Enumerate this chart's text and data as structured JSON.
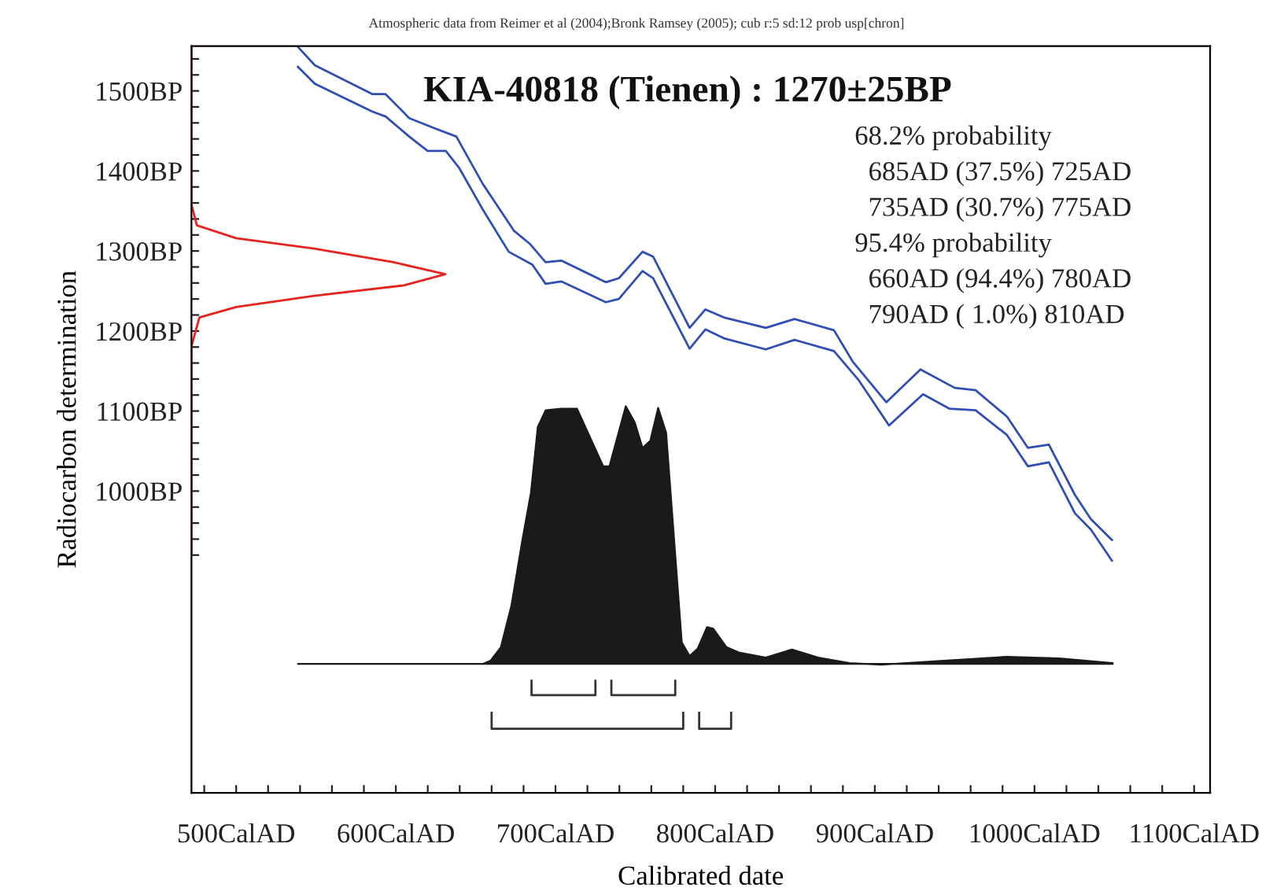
{
  "chart_data": {
    "type": "line",
    "title": "KIA-40818 (Tienen) : 1270±25BP",
    "xlabel": "Calibrated date",
    "ylabel": "Radiocarbon determination",
    "annotations": [
      "Atmospheric data from Reimer et al (2004);Bronk Ramsey (2005); cub r:5 sd:12 prob usp[chron]",
      "68.2% probability",
      "  685AD (37.5%) 725AD",
      "  735AD (30.7%) 775AD",
      "95.4% probability",
      "  660AD (94.4%) 780AD",
      "  790AD ( 1.0%) 810AD"
    ],
    "xlim": [
      472,
      1110
    ],
    "ylim": [
      623,
      1556
    ],
    "xticks": [
      {
        "value": 480,
        "label": null
      },
      {
        "value": 500,
        "label": "500CalAD"
      },
      {
        "value": 520,
        "label": null
      },
      {
        "value": 540,
        "label": null
      },
      {
        "value": 560,
        "label": null
      },
      {
        "value": 580,
        "label": null
      },
      {
        "value": 600,
        "label": "600CalAD"
      },
      {
        "value": 620,
        "label": null
      },
      {
        "value": 640,
        "label": null
      },
      {
        "value": 660,
        "label": null
      },
      {
        "value": 680,
        "label": null
      },
      {
        "value": 700,
        "label": "700CalAD"
      },
      {
        "value": 720,
        "label": null
      },
      {
        "value": 740,
        "label": null
      },
      {
        "value": 760,
        "label": null
      },
      {
        "value": 780,
        "label": null
      },
      {
        "value": 800,
        "label": "800CalAD"
      },
      {
        "value": 820,
        "label": null
      },
      {
        "value": 840,
        "label": null
      },
      {
        "value": 860,
        "label": null
      },
      {
        "value": 880,
        "label": null
      },
      {
        "value": 900,
        "label": "900CalAD"
      },
      {
        "value": 920,
        "label": null
      },
      {
        "value": 940,
        "label": null
      },
      {
        "value": 960,
        "label": null
      },
      {
        "value": 980,
        "label": null
      },
      {
        "value": 1000,
        "label": "1000CalAD"
      },
      {
        "value": 1020,
        "label": null
      },
      {
        "value": 1040,
        "label": null
      },
      {
        "value": 1060,
        "label": null
      },
      {
        "value": 1080,
        "label": null
      },
      {
        "value": 1100,
        "label": "1100CalAD"
      }
    ],
    "yticks": [
      {
        "value": 920,
        "label": null
      },
      {
        "value": 940,
        "label": null
      },
      {
        "value": 960,
        "label": null
      },
      {
        "value": 980,
        "label": null
      },
      {
        "value": 1000,
        "label": "1000BP"
      },
      {
        "value": 1020,
        "label": null
      },
      {
        "value": 1040,
        "label": null
      },
      {
        "value": 1060,
        "label": null
      },
      {
        "value": 1080,
        "label": null
      },
      {
        "value": 1100,
        "label": "1100BP"
      },
      {
        "value": 1120,
        "label": null
      },
      {
        "value": 1140,
        "label": null
      },
      {
        "value": 1160,
        "label": null
      },
      {
        "value": 1180,
        "label": null
      },
      {
        "value": 1200,
        "label": "1200BP"
      },
      {
        "value": 1220,
        "label": null
      },
      {
        "value": 1240,
        "label": null
      },
      {
        "value": 1260,
        "label": null
      },
      {
        "value": 1280,
        "label": null
      },
      {
        "value": 1300,
        "label": "1300BP"
      },
      {
        "value": 1320,
        "label": null
      },
      {
        "value": 1340,
        "label": null
      },
      {
        "value": 1360,
        "label": null
      },
      {
        "value": 1380,
        "label": null
      },
      {
        "value": 1400,
        "label": "1400BP"
      },
      {
        "value": 1420,
        "label": null
      },
      {
        "value": 1440,
        "label": null
      },
      {
        "value": 1460,
        "label": null
      },
      {
        "value": 1480,
        "label": null
      },
      {
        "value": 1500,
        "label": "1500BP"
      },
      {
        "value": 1520,
        "label": null
      },
      {
        "value": 1540,
        "label": null
      }
    ],
    "series": [
      {
        "color": "#2f4fb5",
        "x": [
          538.7,
          549.3,
          585.4,
          593.6,
          608.4,
          624.8,
          637.9,
          654.4,
          674.1,
          683.9,
          693.8,
          703.6,
          731.5,
          739.7,
          754.5,
          761.1,
          784.0,
          793.9,
          805.4,
          831.7,
          849.7,
          874.4,
          886.1,
          907.2,
          928.6,
          950,
          963.1,
          982.8,
          995.9,
          1009,
          1025.4,
          1035.3,
          1048.5
        ],
        "values": [
          1555,
          1532,
          1496,
          1496,
          1466,
          1453,
          1443,
          1384,
          1325,
          1309,
          1286,
          1288,
          1261,
          1266,
          1299,
          1293,
          1204,
          1227,
          1217,
          1204,
          1215,
          1201,
          1162,
          1111,
          1152,
          1129,
          1126,
          1093,
          1054,
          1058,
          995,
          965,
          939
        ]
      },
      {
        "color": "#2f4fb5",
        "x": [
          538.7,
          549.3,
          585.4,
          593.6,
          608.4,
          619.9,
          631.3,
          639.6,
          654.4,
          670.7,
          685.5,
          693.8,
          703.6,
          731.5,
          739.7,
          754.5,
          761.1,
          784.0,
          793.9,
          805.4,
          831.7,
          849.7,
          874.4,
          890.1,
          908.9,
          930.2,
          946.6,
          963.1,
          982.8,
          995.9,
          1009,
          1025.4,
          1035.3,
          1048.5
        ],
        "values": [
          1530,
          1509,
          1474,
          1468,
          1443,
          1425,
          1425,
          1404,
          1352,
          1299,
          1283,
          1259,
          1262,
          1236,
          1240,
          1275,
          1266,
          1178,
          1202,
          1191,
          1177,
          1189,
          1175,
          1138,
          1082,
          1121,
          1103,
          1101,
          1070,
          1031,
          1036,
          972,
          952,
          913
        ]
      },
      {
        "color": "#e8231f",
        "x": [
          472,
          472,
          475.4,
          500,
          549,
          598.5,
          631,
          605,
          549,
          500,
          477,
          472,
          472
        ],
        "values": [
          1556,
          1358,
          1332,
          1316,
          1303,
          1286,
          1271,
          1257,
          1244,
          1230,
          1217,
          1181,
          920
        ]
      },
      {
        "type": "area",
        "color": "#1a1a1a",
        "x": [
          538.7,
          654.4,
          659.3,
          665.8,
          672.4,
          679,
          684.6,
          688.9,
          693.8,
          703.6,
          713.5,
          729.9,
          733.8,
          744.0,
          749.6,
          754.5,
          759.4,
          764.3,
          769.3,
          779.1,
          784,
          789,
          794.9,
          798.8,
          807.1,
          815.3,
          831.7,
          848.1,
          864.5,
          884.2,
          904,
          943.3,
          982.8,
          1015.6,
          1049
        ],
        "values": [
          784,
          784,
          788,
          805,
          857,
          936,
          998,
          1080,
          1101,
          1103,
          1103,
          1031,
          1031,
          1106,
          1086,
          1054,
          1063,
          1104,
          1073,
          811,
          794,
          803,
          830,
          828,
          805,
          798,
          792,
          802,
          792,
          785,
          783,
          788,
          793,
          791,
          785
        ]
      },
      {
        "color": "#333333",
        "x": [
          685,
          685,
          725,
          725
        ],
        "values": [
          763,
          745,
          745,
          763
        ]
      },
      {
        "color": "#333333",
        "x": [
          735,
          735,
          775,
          775
        ],
        "values": [
          763,
          745,
          745,
          763
        ]
      },
      {
        "color": "#333333",
        "x": [
          660,
          660,
          780,
          780
        ],
        "values": [
          723,
          703,
          703,
          723
        ]
      },
      {
        "color": "#333333",
        "x": [
          790,
          790,
          810,
          810
        ],
        "values": [
          723,
          703,
          703,
          723
        ]
      }
    ]
  }
}
